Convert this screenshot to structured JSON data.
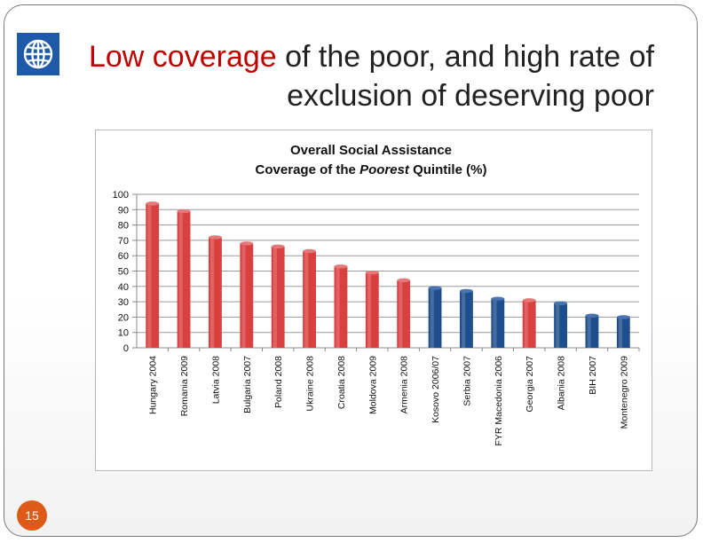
{
  "slide": {
    "title_highlight": "Low coverage",
    "title_rest_line1": " of the poor, and high rate of",
    "title_line2": "exclusion of deserving poor",
    "page_number": "15",
    "logo_icon": "world-bank-globe-icon"
  },
  "colors": {
    "accent_red": "#c00000",
    "bar_red": "#d94040",
    "bar_blue": "#1f4e8c",
    "page_badge": "#e05a17"
  },
  "chart_data": {
    "type": "bar",
    "title_line1": "Overall Social Assistance",
    "title_line2_pre": "Coverage of the ",
    "title_line2_italic": "Poorest",
    "title_line2_post": " Quintile (%)",
    "categories": [
      "Hungary 2004",
      "Romania 2009",
      "Latvia 2008",
      "Bulgaria 2007",
      "Poland 2008",
      "Ukraine 2008",
      "Croatia 2008",
      "Moldova 2009",
      "Armenia 2008",
      "Kosovo 2006/07",
      "Serbia 2007",
      "FYR Macedonia 2006",
      "Georgia 2007",
      "Albania 2008",
      "BIH 2007",
      "Montenegro 2009"
    ],
    "values": [
      94,
      89,
      72,
      68,
      66,
      63,
      53,
      49,
      44,
      39,
      37,
      32,
      31,
      29,
      21,
      20
    ],
    "bar_colors": [
      "red",
      "red",
      "red",
      "red",
      "red",
      "red",
      "red",
      "red",
      "red",
      "blue",
      "blue",
      "blue",
      "red",
      "blue",
      "blue",
      "blue"
    ],
    "ylim": [
      0,
      100
    ],
    "yticks": [
      0,
      10,
      20,
      30,
      40,
      50,
      60,
      70,
      80,
      90,
      100
    ],
    "grid": true,
    "xlabel": "",
    "ylabel": ""
  }
}
